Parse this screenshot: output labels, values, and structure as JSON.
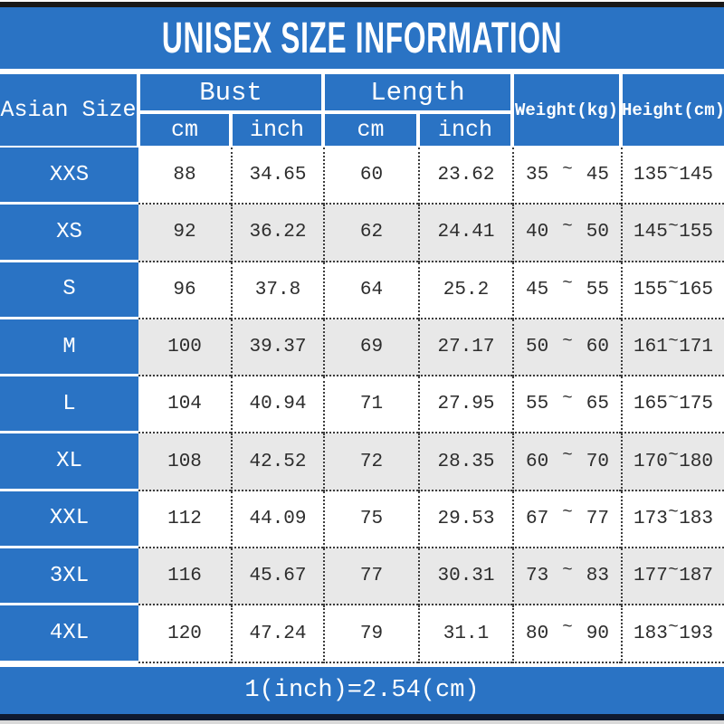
{
  "title": "UNISEX SIZE INFORMATION",
  "footer_note": "1(inch)=2.54(cm)",
  "colors": {
    "accent_blue": "#2a73c4",
    "row_alt_gray": "#e8e8e8",
    "top_bar_black": "#191919",
    "bottom_bar_navy": "#0f1a30",
    "text_dark": "#2d2d2d"
  },
  "table": {
    "range_separator": "~",
    "headers": {
      "asian_size": "Asian Size",
      "bust": "Bust",
      "length": "Length",
      "cm": "cm",
      "inch": "inch",
      "weight": "Weight(kg)",
      "height": "Height(cm)"
    },
    "rows": [
      {
        "size": "XXS",
        "bust_cm": "88",
        "bust_inch": "34.65",
        "length_cm": "60",
        "length_inch": "23.62",
        "weight_min": "35",
        "weight_max": "45",
        "height_min": "135",
        "height_max": "145"
      },
      {
        "size": "XS",
        "bust_cm": "92",
        "bust_inch": "36.22",
        "length_cm": "62",
        "length_inch": "24.41",
        "weight_min": "40",
        "weight_max": "50",
        "height_min": "145",
        "height_max": "155"
      },
      {
        "size": "S",
        "bust_cm": "96",
        "bust_inch": "37.8",
        "length_cm": "64",
        "length_inch": "25.2",
        "weight_min": "45",
        "weight_max": "55",
        "height_min": "155",
        "height_max": "165"
      },
      {
        "size": "M",
        "bust_cm": "100",
        "bust_inch": "39.37",
        "length_cm": "69",
        "length_inch": "27.17",
        "weight_min": "50",
        "weight_max": "60",
        "height_min": "161",
        "height_max": "171"
      },
      {
        "size": "L",
        "bust_cm": "104",
        "bust_inch": "40.94",
        "length_cm": "71",
        "length_inch": "27.95",
        "weight_min": "55",
        "weight_max": "65",
        "height_min": "165",
        "height_max": "175"
      },
      {
        "size": "XL",
        "bust_cm": "108",
        "bust_inch": "42.52",
        "length_cm": "72",
        "length_inch": "28.35",
        "weight_min": "60",
        "weight_max": "70",
        "height_min": "170",
        "height_max": "180"
      },
      {
        "size": "XXL",
        "bust_cm": "112",
        "bust_inch": "44.09",
        "length_cm": "75",
        "length_inch": "29.53",
        "weight_min": "67",
        "weight_max": "77",
        "height_min": "173",
        "height_max": "183"
      },
      {
        "size": "3XL",
        "bust_cm": "116",
        "bust_inch": "45.67",
        "length_cm": "77",
        "length_inch": "30.31",
        "weight_min": "73",
        "weight_max": "83",
        "height_min": "177",
        "height_max": "187"
      },
      {
        "size": "4XL",
        "bust_cm": "120",
        "bust_inch": "47.24",
        "length_cm": "79",
        "length_inch": "31.1",
        "weight_min": "80",
        "weight_max": "90",
        "height_min": "183",
        "height_max": "193"
      }
    ]
  }
}
